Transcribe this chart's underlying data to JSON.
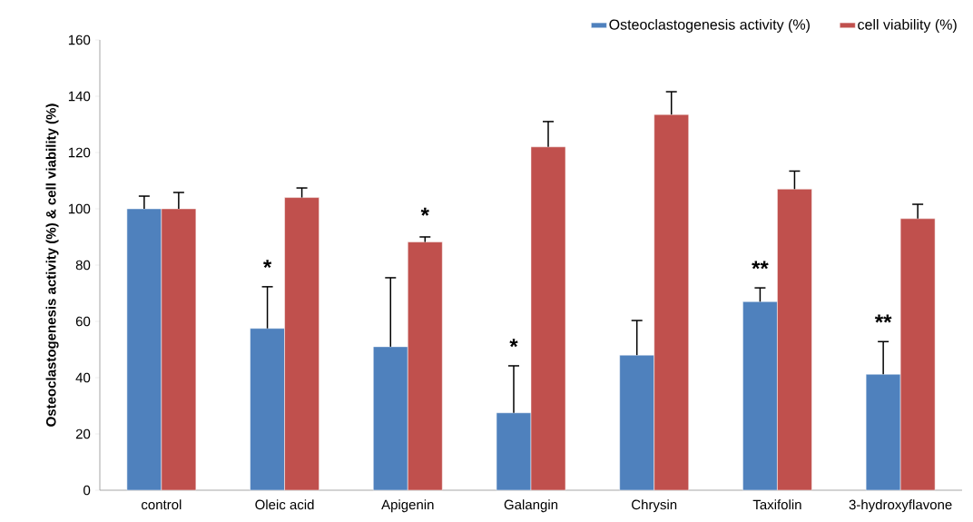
{
  "chart_data": {
    "type": "bar",
    "categories": [
      "control",
      "Oleic acid",
      "Apigenin",
      "Galangin",
      "Chrysin",
      "Taxifolin",
      "3-hydroxyflavone"
    ],
    "ylabel": "Osteoclastogenesis activity (%) & cell viability (%)",
    "ylim": [
      0,
      160
    ],
    "yticks": [
      0,
      20,
      40,
      60,
      80,
      100,
      120,
      140,
      160
    ],
    "legend": "top right",
    "series": [
      {
        "name": "Osteoclastogenesis activity (%)",
        "color": "#4f81bd",
        "values": [
          100,
          57.5,
          51,
          27.5,
          48,
          67,
          41.2
        ],
        "errors": [
          [
            100,
            104.5
          ],
          [
            57.5,
            72.3
          ],
          [
            51,
            75.5
          ],
          [
            27.5,
            44.2
          ],
          [
            48,
            60.3
          ],
          [
            67,
            71.9
          ],
          [
            41.2,
            52.8
          ]
        ]
      },
      {
        "name": "cell viability (%)",
        "color": "#c0504d",
        "values": [
          100,
          104,
          88.2,
          122,
          133.5,
          107,
          96.5
        ],
        "errors": [
          [
            100,
            105.8
          ],
          [
            104,
            107.4
          ],
          [
            88.2,
            90
          ],
          [
            122,
            131
          ],
          [
            133.5,
            141.6
          ],
          [
            107,
            113.4
          ],
          [
            96.5,
            101.6
          ]
        ]
      }
    ],
    "annotations": [
      {
        "text": "*",
        "x": "Oleic acid",
        "y": 72.3
      },
      {
        "text": "*",
        "x": "Apigenin",
        "y": 88.2
      },
      {
        "text": "*",
        "x": "Galangin",
        "y": 44.2
      },
      {
        "text": "**",
        "x": "Taxifolin",
        "y": 71.9
      },
      {
        "text": "**",
        "x": "3-hydroxyflavone",
        "y": 52.8
      }
    ]
  }
}
